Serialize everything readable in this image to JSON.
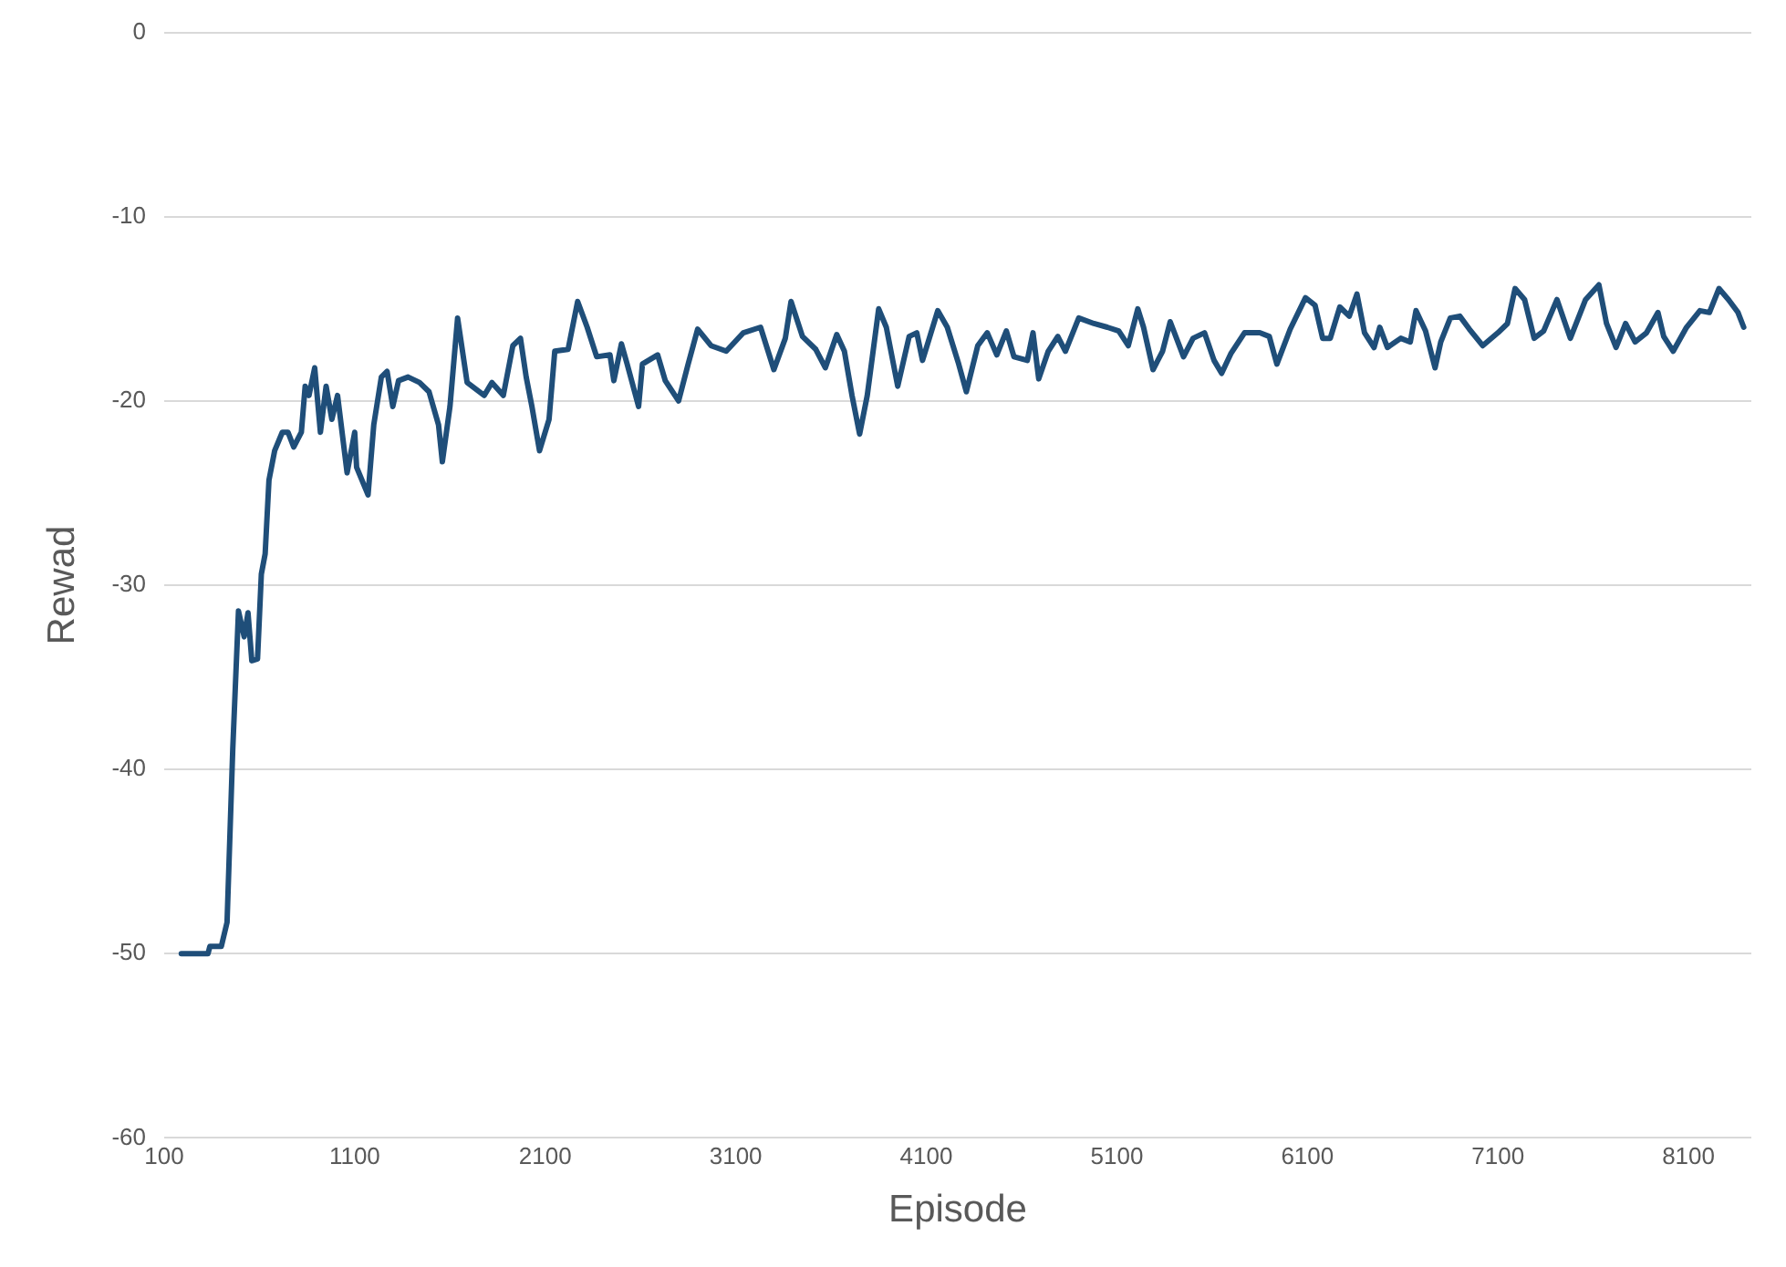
{
  "chart_data": {
    "type": "line",
    "xlabel": "Episode",
    "ylabel": "Rewad",
    "xlim": [
      100,
      8430
    ],
    "xticks": [
      100,
      1100,
      2100,
      3100,
      4100,
      5100,
      6100,
      7100,
      8100
    ],
    "ylim": [
      -60,
      0
    ],
    "yticks": [
      -60,
      -50,
      -40,
      -30,
      -20,
      -10,
      0
    ],
    "grid": "y",
    "legend": false,
    "marker": "none",
    "line_style": "solid",
    "series": [
      {
        "color": "#1f4e79",
        "x": [
          190,
          330,
          340,
          400,
          430,
          460,
          490,
          520,
          540,
          560,
          590,
          610,
          630,
          650,
          680,
          720,
          750,
          780,
          820,
          840,
          860,
          890,
          920,
          950,
          980,
          1010,
          1060,
          1100,
          1110,
          1170,
          1200,
          1240,
          1270,
          1300,
          1330,
          1380,
          1440,
          1490,
          1540,
          1560,
          1600,
          1640,
          1690,
          1780,
          1820,
          1880,
          1930,
          1970,
          2000,
          2030,
          2070,
          2120,
          2150,
          2220,
          2270,
          2320,
          2370,
          2440,
          2460,
          2500,
          2530,
          2590,
          2610,
          2690,
          2730,
          2800,
          2850,
          2900,
          2970,
          3050,
          3140,
          3230,
          3300,
          3360,
          3390,
          3450,
          3520,
          3570,
          3630,
          3670,
          3710,
          3750,
          3790,
          3850,
          3890,
          3950,
          4010,
          4050,
          4080,
          4160,
          4210,
          4270,
          4310,
          4370,
          4420,
          4470,
          4520,
          4560,
          4630,
          4660,
          4690,
          4740,
          4790,
          4830,
          4900,
          4980,
          5050,
          5110,
          5160,
          5210,
          5240,
          5290,
          5340,
          5380,
          5450,
          5500,
          5560,
          5610,
          5650,
          5700,
          5770,
          5850,
          5900,
          5940,
          6010,
          6090,
          6140,
          6180,
          6220,
          6270,
          6320,
          6360,
          6400,
          6450,
          6480,
          6520,
          6590,
          6640,
          6670,
          6720,
          6770,
          6800,
          6850,
          6900,
          6950,
          7020,
          7100,
          7150,
          7190,
          7240,
          7290,
          7340,
          7410,
          7480,
          7560,
          7630,
          7670,
          7720,
          7770,
          7820,
          7880,
          7940,
          7970,
          8020,
          8090,
          8160,
          8210,
          8260,
          8310,
          8360,
          8390
        ],
        "values": [
          -50,
          -50,
          -49.6,
          -49.6,
          -48.3,
          -38.9,
          -31.4,
          -32.8,
          -31.5,
          -34.1,
          -34,
          -29.4,
          -28.3,
          -24.3,
          -22.7,
          -21.7,
          -21.7,
          -22.5,
          -21.7,
          -19.2,
          -19.7,
          -18.2,
          -21.7,
          -19.2,
          -21,
          -19.7,
          -23.9,
          -21.7,
          -23.6,
          -25.1,
          -21.3,
          -18.7,
          -18.4,
          -20.3,
          -18.9,
          -18.7,
          -19,
          -19.5,
          -21.3,
          -23.3,
          -20.3,
          -15.5,
          -19,
          -19.7,
          -19,
          -19.7,
          -17,
          -16.6,
          -18.7,
          -20.3,
          -22.7,
          -21,
          -17.3,
          -17.2,
          -14.6,
          -16,
          -17.6,
          -17.5,
          -18.9,
          -16.9,
          -18,
          -20.3,
          -18,
          -17.5,
          -18.9,
          -20,
          -18,
          -16.1,
          -17,
          -17.3,
          -16.3,
          -16,
          -18.3,
          -16.6,
          -14.6,
          -16.5,
          -17.2,
          -18.2,
          -16.4,
          -17.3,
          -19.7,
          -21.8,
          -19.7,
          -15,
          -16,
          -19.2,
          -16.5,
          -16.3,
          -17.8,
          -15.1,
          -16,
          -18,
          -19.5,
          -17,
          -16.3,
          -17.5,
          -16.2,
          -17.6,
          -17.8,
          -16.3,
          -18.8,
          -17.3,
          -16.5,
          -17.3,
          -15.5,
          -15.8,
          -16,
          -16.2,
          -17,
          -15,
          -16,
          -18.3,
          -17.3,
          -15.7,
          -17.6,
          -16.6,
          -16.3,
          -17.8,
          -18.5,
          -17.4,
          -16.3,
          -16.3,
          -16.5,
          -18,
          -16.1,
          -14.4,
          -14.8,
          -16.6,
          -16.6,
          -14.9,
          -15.4,
          -14.2,
          -16.3,
          -17.1,
          -16,
          -17.1,
          -16.6,
          -16.8,
          -15.1,
          -16.2,
          -18.2,
          -16.8,
          -15.5,
          -15.4,
          -16.1,
          -17,
          -16.3,
          -15.8,
          -13.9,
          -14.5,
          -16.6,
          -16.2,
          -14.5,
          -16.6,
          -14.5,
          -13.7,
          -15.8,
          -17.1,
          -15.8,
          -16.8,
          -16.3,
          -15.2,
          -16.5,
          -17.3,
          -16,
          -15.1,
          -15.2,
          -13.9,
          -14.5,
          -15.2,
          -16
        ]
      }
    ]
  }
}
